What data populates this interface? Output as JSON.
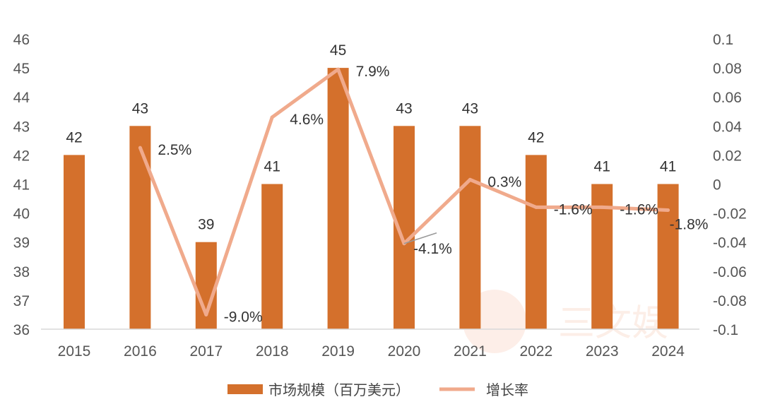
{
  "chart_data": {
    "type": "bar+line",
    "categories": [
      "2015",
      "2016",
      "2017",
      "2018",
      "2019",
      "2020",
      "2021",
      "2022",
      "2023",
      "2024"
    ],
    "series": [
      {
        "name": "市场规模（百万美元）",
        "type": "bar",
        "axis": "left",
        "values": [
          42,
          43,
          39,
          41,
          45,
          43,
          43,
          42,
          41,
          41
        ],
        "labels": [
          "42",
          "43",
          "39",
          "41",
          "45",
          "43",
          "43",
          "42",
          "41",
          "41"
        ],
        "color": "#d4702c"
      },
      {
        "name": "增长率",
        "type": "line",
        "axis": "right",
        "values": [
          null,
          0.025,
          -0.09,
          0.046,
          0.079,
          -0.041,
          0.003,
          -0.016,
          -0.016,
          -0.018
        ],
        "labels": [
          "",
          "2.5%",
          "-9.0%",
          "4.6%",
          "7.9%",
          "-4.1%",
          "0.3%",
          "-1.6%",
          "-1.6%",
          "-1.8%"
        ],
        "color": "#f0aa8c"
      }
    ],
    "highlight_color": "#c00000",
    "highlight_index": 5,
    "y_left": {
      "lim": [
        36,
        46
      ],
      "ticks": [
        "36",
        "37",
        "38",
        "39",
        "40",
        "41",
        "42",
        "43",
        "44",
        "45",
        "46"
      ]
    },
    "y_right": {
      "lim": [
        -0.1,
        0.1
      ],
      "ticks": [
        "-0.1",
        "-0.08",
        "-0.06",
        "-0.04",
        "-0.02",
        "0",
        "0.02",
        "0.04",
        "0.06",
        "0.08",
        "0.1"
      ]
    },
    "grid": false,
    "legend": "bottom",
    "title": "",
    "xlabel": "",
    "ylabel": ""
  },
  "watermark": "三文娱"
}
